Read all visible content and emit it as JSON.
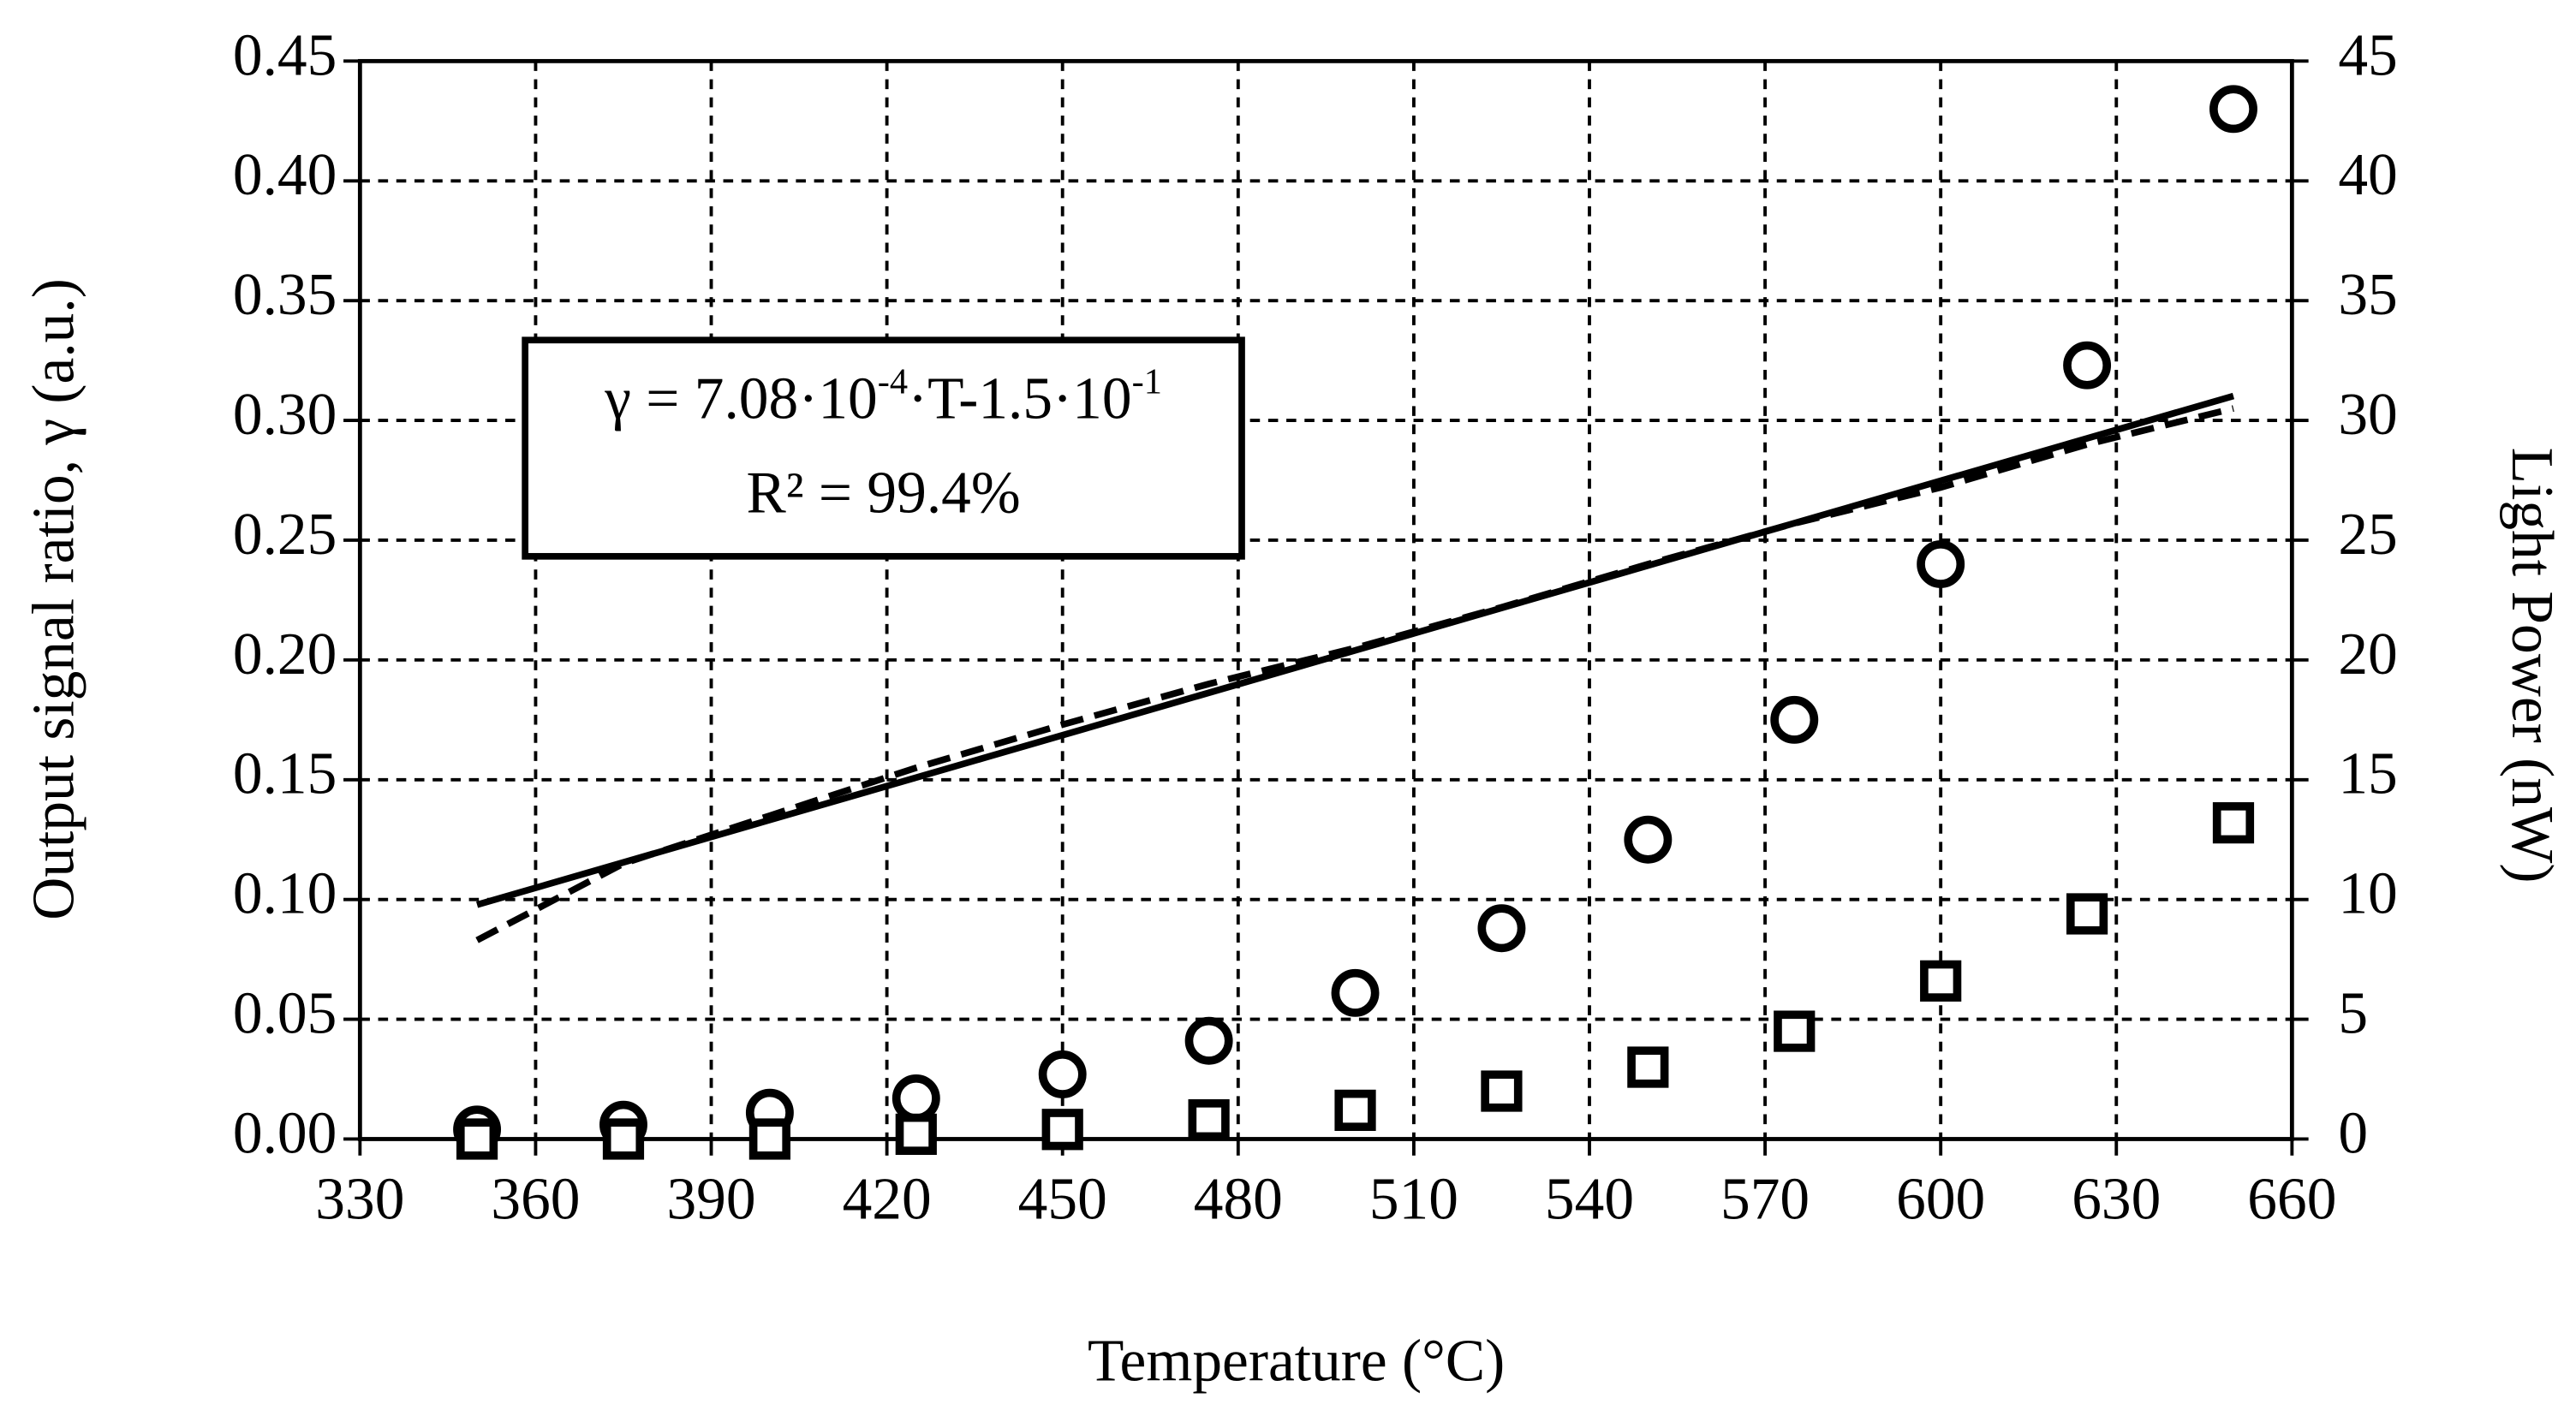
{
  "chart_data": {
    "type": "scatter",
    "x_label": "Temperature (°C)",
    "y_label": "Output signal ratio, γ (a.u.)",
    "y2_label": "Light Power (nW)",
    "annotation": {
      "formula": [
        "γ = 7.08·10",
        "-4",
        "·T-1.5·10",
        "-1"
      ],
      "r2": "R² = 99.4%"
    },
    "x": [
      350,
      375,
      400,
      425,
      450,
      475,
      500,
      525,
      550,
      575,
      600,
      625,
      650
    ],
    "series": [
      {
        "marker": "circle",
        "color": "#000000",
        "axis": "y2",
        "values": [
          0.4,
          0.6,
          1.1,
          1.7,
          2.7,
          4.1,
          6.1,
          8.8,
          12.5,
          17.5,
          24.0,
          32.3,
          43.0
        ]
      },
      {
        "marker": "square",
        "color": "#000000",
        "axis": "y2",
        "values": [
          0.0,
          0.0,
          0.0,
          0.2,
          0.4,
          0.8,
          1.2,
          2.0,
          3.0,
          4.5,
          6.6,
          9.4,
          13.2
        ]
      },
      {
        "marker": "none",
        "linestyle": "dashed",
        "color": "#000000",
        "values": [
          0.083,
          0.115,
          0.135,
          0.155,
          0.173,
          0.19,
          0.205,
          0.222,
          0.24,
          0.257,
          0.272,
          0.29,
          0.305
        ]
      },
      {
        "marker": "none",
        "linestyle": "solid",
        "color": "#000000",
        "x": [
          350,
          650
        ],
        "values": [
          0.0978,
          0.3102
        ]
      }
    ],
    "xlim": [
      330,
      660
    ],
    "xticks": [
      330,
      360,
      390,
      420,
      450,
      480,
      510,
      540,
      570,
      600,
      630,
      660
    ],
    "ylim": [
      0,
      0.45
    ],
    "yticks": [
      {
        "value": 0,
        "label": "0.00"
      },
      {
        "value": 0.05,
        "label": "0.05"
      },
      {
        "value": 0.1,
        "label": "0.10"
      },
      {
        "value": 0.15,
        "label": "0.15"
      },
      {
        "value": 0.2,
        "label": "0.20"
      },
      {
        "value": 0.25,
        "label": "0.25"
      },
      {
        "value": 0.3,
        "label": "0.30"
      },
      {
        "value": 0.35,
        "label": "0.35"
      },
      {
        "value": 0.4,
        "label": "0.40"
      },
      {
        "value": 0.45,
        "label": "0.45"
      }
    ],
    "y2lim": [
      0,
      45
    ],
    "y2ticks": [
      0,
      5,
      10,
      15,
      20,
      25,
      30,
      35,
      40,
      45
    ],
    "grid": true
  }
}
